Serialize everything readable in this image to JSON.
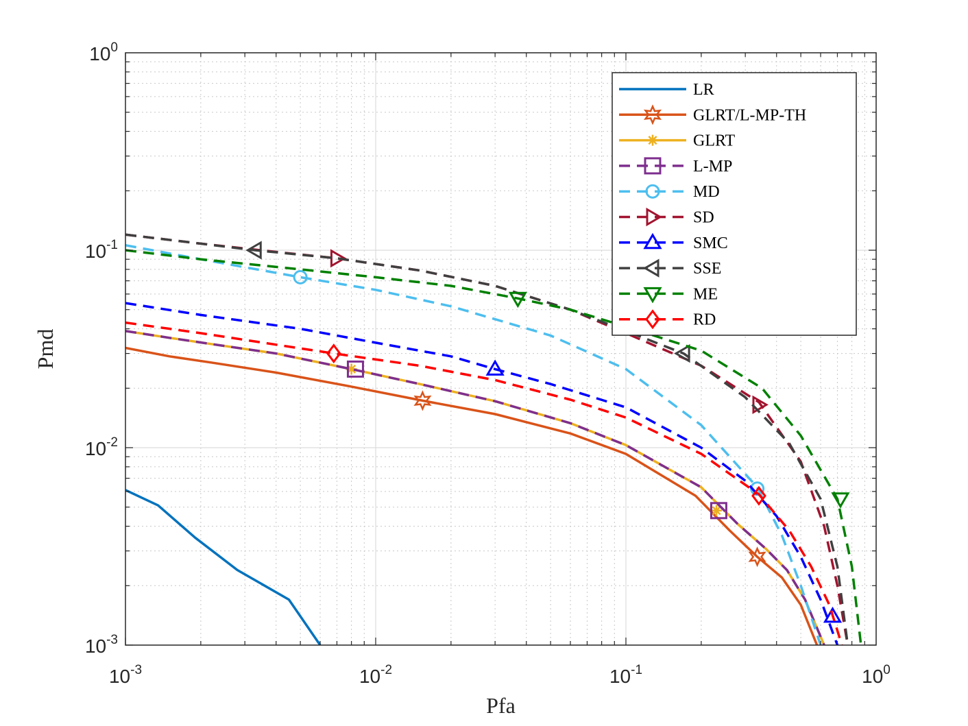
{
  "chart_data": {
    "type": "line",
    "title": "",
    "xlabel": "Pfa",
    "ylabel": "Pmd",
    "xscale": "log",
    "yscale": "log",
    "xlim": [
      0.001,
      1
    ],
    "ylim": [
      0.001,
      1
    ],
    "grid": true,
    "minor_grid": true,
    "legend_position": "top-right",
    "x_ticks": [
      {
        "base": "10",
        "exp": "-3",
        "value": 0.001
      },
      {
        "base": "10",
        "exp": "-2",
        "value": 0.01
      },
      {
        "base": "10",
        "exp": "-1",
        "value": 0.1
      },
      {
        "base": "10",
        "exp": "0",
        "value": 1
      }
    ],
    "y_ticks": [
      {
        "base": "10",
        "exp": "-3",
        "value": 0.001
      },
      {
        "base": "10",
        "exp": "-2",
        "value": 0.01
      },
      {
        "base": "10",
        "exp": "-1",
        "value": 0.1
      },
      {
        "base": "10",
        "exp": "0",
        "value": 1
      }
    ],
    "series": [
      {
        "name": "LR",
        "color": "#0072BD",
        "dash": "solid",
        "marker": "none",
        "x": [
          0.001,
          0.00135,
          0.0019,
          0.0028,
          0.0045,
          0.006
        ],
        "y": [
          0.0061,
          0.0051,
          0.0035,
          0.0024,
          0.0017,
          0.001
        ],
        "markers": []
      },
      {
        "name": "GLRT/L-MP-TH",
        "color": "#D95319",
        "dash": "solid",
        "marker": "hexagram",
        "x": [
          0.001,
          0.0015,
          0.0022,
          0.004,
          0.0078,
          0.0154,
          0.03,
          0.06,
          0.1,
          0.19,
          0.26,
          0.335,
          0.42,
          0.5,
          0.58
        ],
        "y": [
          0.032,
          0.029,
          0.027,
          0.024,
          0.0205,
          0.0173,
          0.0148,
          0.0118,
          0.0093,
          0.0057,
          0.0038,
          0.0028,
          0.0022,
          0.0016,
          0.001
        ],
        "markers": [
          {
            "x": 0.0154,
            "y": 0.0173
          },
          {
            "x": 0.335,
            "y": 0.0028
          }
        ]
      },
      {
        "name": "GLRT",
        "color": "#EDB120",
        "dash": "solid",
        "marker": "asterisk",
        "x": [
          0.001,
          0.0015,
          0.0022,
          0.004,
          0.008,
          0.015,
          0.03,
          0.06,
          0.1,
          0.2,
          0.28,
          0.36,
          0.44,
          0.52,
          0.62
        ],
        "y": [
          0.039,
          0.036,
          0.0335,
          0.03,
          0.025,
          0.021,
          0.0172,
          0.0133,
          0.0103,
          0.0063,
          0.0041,
          0.0031,
          0.0024,
          0.0017,
          0.001
        ],
        "markers": [
          {
            "x": 0.008,
            "y": 0.025
          },
          {
            "x": 0.23,
            "y": 0.0048
          }
        ]
      },
      {
        "name": "L-MP",
        "color": "#7E2F8E",
        "dash": "dashed",
        "marker": "square",
        "x": [
          0.001,
          0.0015,
          0.0022,
          0.004,
          0.008,
          0.015,
          0.03,
          0.06,
          0.1,
          0.2,
          0.28,
          0.36,
          0.44,
          0.52,
          0.62
        ],
        "y": [
          0.039,
          0.036,
          0.0335,
          0.03,
          0.025,
          0.021,
          0.0172,
          0.0133,
          0.0103,
          0.0063,
          0.0041,
          0.0031,
          0.0024,
          0.0017,
          0.001
        ],
        "markers": [
          {
            "x": 0.0083,
            "y": 0.025
          },
          {
            "x": 0.235,
            "y": 0.0048
          }
        ]
      },
      {
        "name": "MD",
        "color": "#4DBEEE",
        "dash": "dashed",
        "marker": "circle",
        "x": [
          0.001,
          0.002,
          0.005,
          0.01,
          0.02,
          0.05,
          0.1,
          0.2,
          0.335,
          0.42,
          0.5,
          0.6
        ],
        "y": [
          0.106,
          0.09,
          0.073,
          0.063,
          0.052,
          0.037,
          0.025,
          0.013,
          0.0063,
          0.0036,
          0.002,
          0.001
        ],
        "markers": [
          {
            "x": 0.005,
            "y": 0.073
          },
          {
            "x": 0.335,
            "y": 0.0062
          }
        ]
      },
      {
        "name": "SD",
        "color": "#A2142F",
        "dash": "dashed",
        "marker": "triangle-right",
        "x": [
          0.001,
          0.002,
          0.004,
          0.007,
          0.015,
          0.03,
          0.06,
          0.1,
          0.2,
          0.34,
          0.5,
          0.62,
          0.7,
          0.77
        ],
        "y": [
          0.12,
          0.108,
          0.098,
          0.091,
          0.079,
          0.066,
          0.05,
          0.038,
          0.026,
          0.017,
          0.0085,
          0.004,
          0.002,
          0.001
        ],
        "markers": [
          {
            "x": 0.007,
            "y": 0.091
          },
          {
            "x": 0.34,
            "y": 0.0165
          }
        ]
      },
      {
        "name": "SMC",
        "color": "#0000FF",
        "dash": "dashed",
        "marker": "triangle-up",
        "x": [
          0.001,
          0.002,
          0.005,
          0.01,
          0.02,
          0.03,
          0.05,
          0.1,
          0.2,
          0.3,
          0.4,
          0.5,
          0.6,
          0.7
        ],
        "y": [
          0.054,
          0.047,
          0.04,
          0.034,
          0.029,
          0.025,
          0.021,
          0.016,
          0.01,
          0.0068,
          0.0045,
          0.0028,
          0.0017,
          0.001
        ],
        "markers": [
          {
            "x": 0.03,
            "y": 0.025
          },
          {
            "x": 0.67,
            "y": 0.0014
          }
        ]
      },
      {
        "name": "SSE",
        "color": "#404040",
        "dash": "dashed",
        "marker": "triangle-left",
        "x": [
          0.001,
          0.002,
          0.0033,
          0.007,
          0.015,
          0.03,
          0.06,
          0.1,
          0.17,
          0.3,
          0.45,
          0.6,
          0.7,
          0.77
        ],
        "y": [
          0.12,
          0.108,
          0.1,
          0.091,
          0.079,
          0.066,
          0.05,
          0.039,
          0.03,
          0.018,
          0.0105,
          0.0055,
          0.0025,
          0.001
        ],
        "markers": [
          {
            "x": 0.0033,
            "y": 0.1
          },
          {
            "x": 0.17,
            "y": 0.03
          }
        ]
      },
      {
        "name": "ME",
        "color": "#008000",
        "dash": "dashed",
        "marker": "triangle-down",
        "x": [
          0.001,
          0.002,
          0.005,
          0.01,
          0.02,
          0.037,
          0.06,
          0.1,
          0.2,
          0.35,
          0.5,
          0.7,
          0.8,
          0.87
        ],
        "y": [
          0.1,
          0.09,
          0.08,
          0.073,
          0.066,
          0.057,
          0.05,
          0.041,
          0.031,
          0.02,
          0.0115,
          0.0055,
          0.0025,
          0.001
        ],
        "markers": [
          {
            "x": 0.037,
            "y": 0.057
          },
          {
            "x": 0.72,
            "y": 0.0055
          }
        ]
      },
      {
        "name": "RD",
        "color": "#FF0000",
        "dash": "dashed",
        "marker": "diamond",
        "x": [
          0.001,
          0.002,
          0.0068,
          0.015,
          0.03,
          0.06,
          0.1,
          0.2,
          0.34,
          0.45,
          0.55,
          0.65,
          0.73
        ],
        "y": [
          0.043,
          0.038,
          0.03,
          0.026,
          0.022,
          0.0175,
          0.0142,
          0.0093,
          0.0058,
          0.0038,
          0.0025,
          0.0016,
          0.001
        ],
        "markers": [
          {
            "x": 0.0068,
            "y": 0.03
          },
          {
            "x": 0.34,
            "y": 0.0057
          }
        ]
      }
    ]
  }
}
